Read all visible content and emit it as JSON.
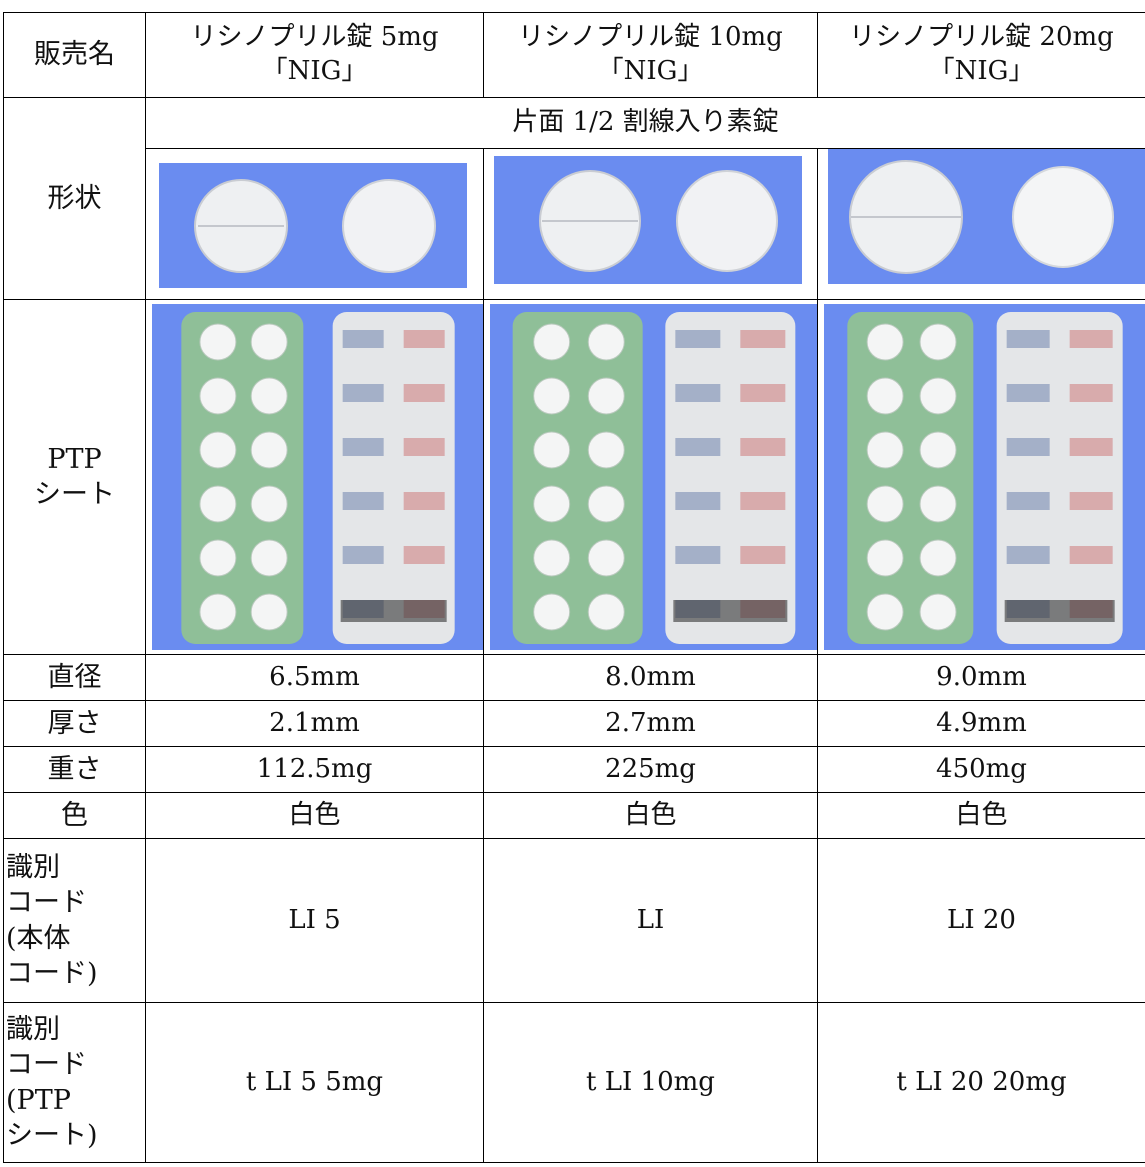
{
  "table": {
    "header": {
      "label": "販売名",
      "products": [
        [
          "リシノプリル錠 5mg",
          "「NIG」"
        ],
        [
          "リシノプリル錠 10mg",
          "「NIG」"
        ],
        [
          "リシノプリル錠 20mg",
          "「NIG」"
        ]
      ]
    },
    "shape": {
      "label": "形状",
      "description": "片面 1/2 割線入り素錠"
    },
    "ptp": {
      "label_lines": [
        "PTP",
        "シート"
      ]
    },
    "rows": [
      {
        "label": "直径",
        "values": [
          "6.5mm",
          "8.0mm",
          "9.0mm"
        ]
      },
      {
        "label": "厚さ",
        "values": [
          "2.1mm",
          "2.7mm",
          "4.9mm"
        ]
      },
      {
        "label": "重さ",
        "values": [
          "112.5mg",
          "225mg",
          "450mg"
        ]
      },
      {
        "label": "色",
        "values": [
          "白色",
          "白色",
          "白色"
        ]
      }
    ],
    "code_rows": [
      {
        "label_lines": [
          "識別",
          "コード",
          "(本体",
          "コード)"
        ],
        "values": [
          "LI 5",
          "LI",
          "LI 20"
        ]
      },
      {
        "label_lines": [
          "識別",
          "コード",
          "(PTP",
          "シート)"
        ],
        "values": [
          "t LI 5 5mg",
          "t LI 10mg",
          "t LI 20 20mg"
        ]
      }
    ]
  }
}
